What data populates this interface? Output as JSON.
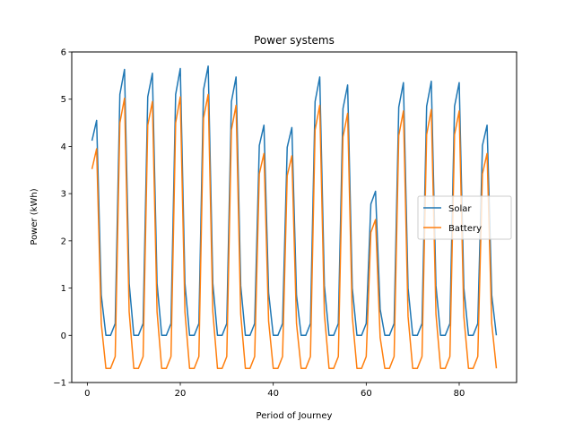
{
  "chart_data": {
    "type": "line",
    "title": "Power systems",
    "xlabel": "Period of Journey",
    "ylabel": "Power (kWh)",
    "xlim": [
      -3.35,
      92.35
    ],
    "ylim": [
      -1,
      6
    ],
    "xticks": [
      0,
      20,
      40,
      60,
      80
    ],
    "yticks": [
      -1,
      0,
      1,
      2,
      3,
      4,
      5,
      6
    ],
    "grid": false,
    "legend_position": "center-right",
    "x": [
      1,
      2,
      3,
      4,
      5,
      6,
      7,
      8,
      9,
      10,
      11,
      12,
      13,
      14,
      15,
      16,
      17,
      18,
      19,
      20,
      21,
      22,
      23,
      24,
      25,
      26,
      27,
      28,
      29,
      30,
      31,
      32,
      33,
      34,
      35,
      36,
      37,
      38,
      39,
      40,
      41,
      42,
      43,
      44,
      45,
      46,
      47,
      48,
      49,
      50,
      51,
      52,
      53,
      54,
      55,
      56,
      57,
      58,
      59,
      60,
      61,
      62,
      63,
      64,
      65,
      66,
      67,
      68,
      69,
      70,
      71,
      72,
      73,
      74,
      75,
      76,
      77,
      78,
      79,
      80,
      81,
      82,
      83,
      84,
      85,
      86,
      87,
      88
    ],
    "series": [
      {
        "name": "Solar",
        "color": "#1f77b4",
        "values": [
          4.12,
          4.55,
          0.85,
          0,
          0,
          0.25,
          5.1,
          5.63,
          1.1,
          0,
          0,
          0.25,
          5.05,
          5.55,
          1.1,
          0,
          0,
          0.25,
          5.1,
          5.65,
          1.1,
          0,
          0,
          0.25,
          5.2,
          5.7,
          1.1,
          0,
          0,
          0.25,
          4.95,
          5.47,
          1.05,
          0,
          0,
          0.25,
          4.02,
          4.45,
          0.9,
          0,
          0,
          0.25,
          3.98,
          4.4,
          0.85,
          0,
          0,
          0.25,
          4.95,
          5.47,
          1.05,
          0,
          0,
          0.25,
          4.8,
          5.3,
          1.0,
          0,
          0,
          0.25,
          2.78,
          3.05,
          0.55,
          0,
          0,
          0.25,
          4.83,
          5.35,
          1.0,
          0,
          0,
          0.25,
          4.85,
          5.38,
          1.05,
          0,
          0,
          0.25,
          4.85,
          5.35,
          1.0,
          0,
          0,
          0.25,
          4.02,
          4.45,
          0.85,
          0
        ]
      },
      {
        "name": "Battery",
        "color": "#ff7f0e",
        "values": [
          3.52,
          3.95,
          0.25,
          -0.7,
          -0.7,
          -0.45,
          4.5,
          5.02,
          0.5,
          -0.7,
          -0.7,
          -0.45,
          4.45,
          4.95,
          0.5,
          -0.7,
          -0.7,
          -0.45,
          4.5,
          5.05,
          0.5,
          -0.7,
          -0.7,
          -0.45,
          4.6,
          5.1,
          0.5,
          -0.7,
          -0.7,
          -0.45,
          4.35,
          4.87,
          0.45,
          -0.7,
          -0.7,
          -0.45,
          3.42,
          3.85,
          0.3,
          -0.7,
          -0.7,
          -0.45,
          3.38,
          3.8,
          0.25,
          -0.7,
          -0.7,
          -0.45,
          4.35,
          4.87,
          0.45,
          -0.7,
          -0.7,
          -0.45,
          4.2,
          4.7,
          0.4,
          -0.7,
          -0.7,
          -0.45,
          2.18,
          2.45,
          -0.05,
          -0.7,
          -0.7,
          -0.45,
          4.23,
          4.75,
          0.4,
          -0.7,
          -0.7,
          -0.45,
          4.25,
          4.78,
          0.45,
          -0.7,
          -0.7,
          -0.45,
          4.25,
          4.75,
          0.4,
          -0.7,
          -0.7,
          -0.45,
          3.42,
          3.85,
          0.25,
          -0.7
        ]
      }
    ]
  }
}
